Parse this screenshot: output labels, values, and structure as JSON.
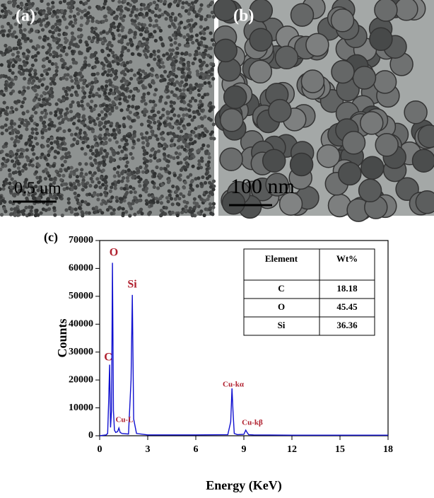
{
  "panels": [
    {
      "label": "(a)",
      "scale_bar": "0.5 um"
    },
    {
      "label": "(b)",
      "scale_bar": "100 nm"
    }
  ],
  "chart_data": {
    "type": "line",
    "panel_label": "(c)",
    "xlabel": "Energy (KeV)",
    "ylabel": "Counts",
    "x": [
      0,
      0.4,
      0.5,
      0.56,
      0.62,
      0.68,
      0.74,
      0.8,
      0.86,
      0.92,
      1.0,
      1.12,
      1.2,
      1.28,
      1.4,
      1.8,
      1.96,
      2.04,
      2.12,
      2.3,
      3,
      6,
      8.0,
      8.18,
      8.26,
      8.32,
      8.4,
      8.6,
      9.0,
      9.12,
      9.2,
      9.3,
      9.6,
      12,
      15,
      18
    ],
    "series": [
      {
        "color": "#1010d0",
        "values": [
          0,
          300,
          800,
          12000,
          25500,
          3000,
          9000,
          62000,
          9000,
          2000,
          1200,
          1500,
          2800,
          1200,
          800,
          600,
          20000,
          50500,
          6000,
          800,
          300,
          300,
          400,
          5000,
          17000,
          9000,
          800,
          400,
          500,
          2000,
          1200,
          400,
          300,
          200,
          200,
          200
        ]
      }
    ],
    "xlim": [
      0,
      18
    ],
    "xticks": [
      0,
      3,
      6,
      9,
      12,
      15,
      18
    ],
    "ylim": [
      0,
      70000
    ],
    "yticks": [
      0,
      10000,
      20000,
      30000,
      40000,
      50000,
      60000,
      70000
    ],
    "annotations": [
      "C",
      "O",
      "Si",
      "Cu-L",
      "Cu-kα",
      "Cu-kβ"
    ],
    "table": {
      "header": [
        "Element",
        "Wt%"
      ],
      "rows": [
        [
          "C",
          18.18
        ],
        [
          "O",
          45.45
        ],
        [
          "Si",
          36.36
        ]
      ]
    }
  }
}
